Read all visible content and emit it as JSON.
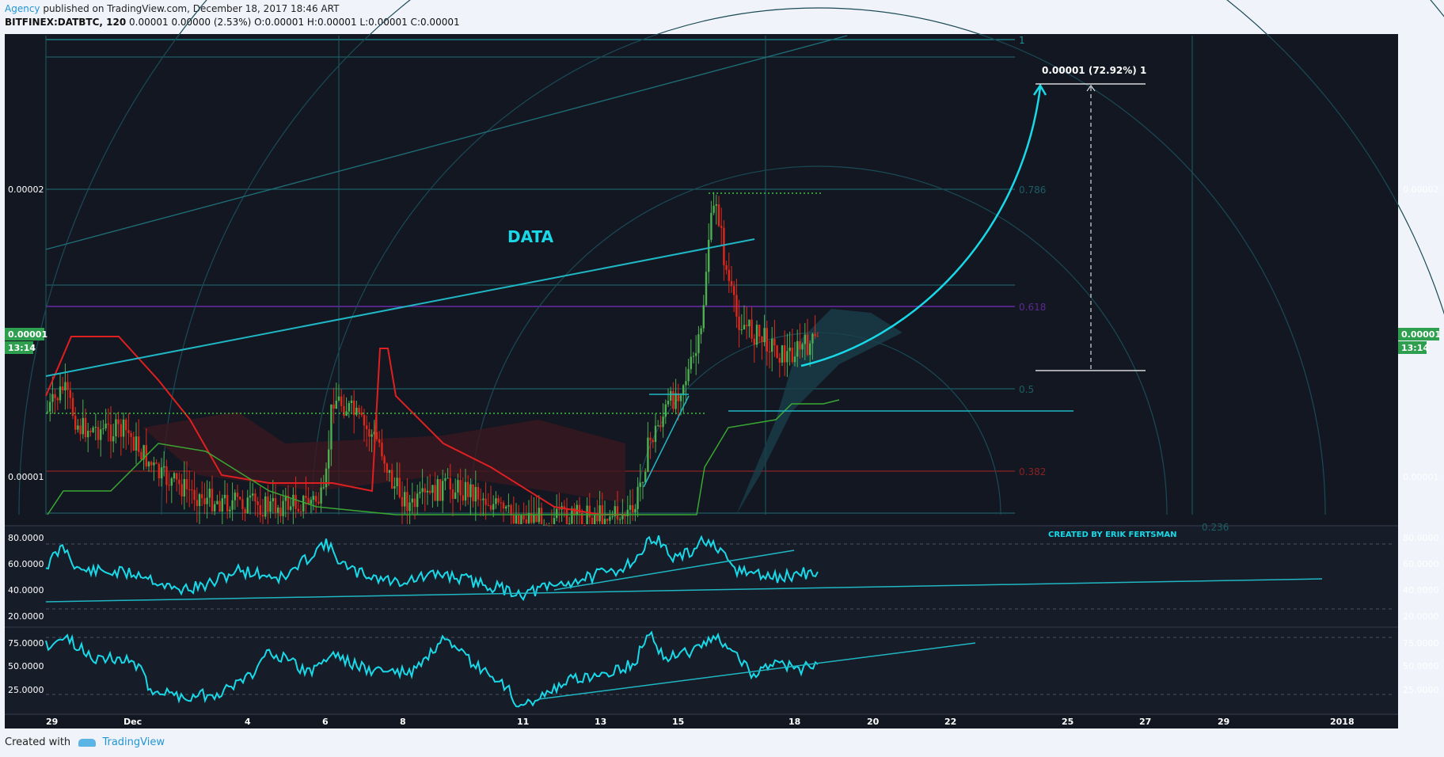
{
  "header": {
    "author": "Agency",
    "published": " published on TradingView.com, December 18, 2017 18:46 ART",
    "symbol": "BITFINEX:DATBTC, 120",
    "ohlc": "  0.00001 0.00000 (2.53%)  O:0.00001 H:0.00001 L:0.00001 C:0.00001"
  },
  "footer": {
    "created_with": "Created with",
    "brand": "TradingView"
  },
  "annotations": {
    "label_data": "DATA",
    "credit": "CREATED BY ERIK FERTSMAN",
    "target_label": "0.00001 (72.92%) 1",
    "fib_levels": [
      "1",
      "0.786",
      "0.618",
      "0.5",
      "0.382",
      "0.236"
    ]
  },
  "price_axis": {
    "ticks": [
      "0.00002",
      "0.00001"
    ],
    "last_price": "0.00001",
    "countdown": "13:14"
  },
  "osc1_axis": [
    "80.0000",
    "60.0000",
    "40.0000",
    "20.0000"
  ],
  "osc2_axis": [
    "75.0000",
    "50.0000",
    "25.0000"
  ],
  "time_axis": [
    "29",
    "Dec",
    "4",
    "6",
    "8",
    "11",
    "13",
    "15",
    "18",
    "20",
    "22",
    "25",
    "27",
    "29",
    "2018"
  ],
  "colors": {
    "background": "#131722",
    "up": "#4caf50",
    "down": "#e0281a",
    "accent": "#19d9e8",
    "fib_teal": "#1f8f95",
    "purple": "#7a2ec4",
    "kijun": "#e02020"
  },
  "chart_data": [
    {
      "type": "line",
      "title": "BITFINEX:DATBTC, 120",
      "x": [
        "29",
        "Dec",
        "4",
        "6",
        "8",
        "11",
        "13",
        "15",
        "18"
      ],
      "series": [
        {
          "name": "",
          "values": [
            1.25e-05,
            1.05e-05,
            9.6e-06,
            1.2e-05,
            1e-05,
            9.4e-06,
            9.8e-06,
            1.95e-05,
            1.4e-05
          ]
        }
      ],
      "y_ticks": [
        1e-05,
        2e-05
      ],
      "last_value": 1e-05,
      "change_pct": 2.53,
      "projection_pct": 72.92
    },
    {
      "type": "line",
      "title": "",
      "x": [
        "29",
        "Dec",
        "4",
        "6",
        "8",
        "11",
        "13",
        "15",
        "18"
      ],
      "series": [
        {
          "name": "",
          "values": [
            52,
            48,
            45,
            74,
            46,
            48,
            40,
            78,
            50
          ]
        }
      ],
      "ylim": [
        20,
        80
      ]
    },
    {
      "type": "line",
      "title": "",
      "x": [
        "29",
        "Dec",
        "4",
        "6",
        "8",
        "11",
        "13",
        "15",
        "18"
      ],
      "series": [
        {
          "name": "",
          "values": [
            65,
            40,
            30,
            58,
            60,
            12,
            52,
            90,
            52
          ]
        }
      ],
      "ylim": [
        10,
        85
      ]
    }
  ]
}
